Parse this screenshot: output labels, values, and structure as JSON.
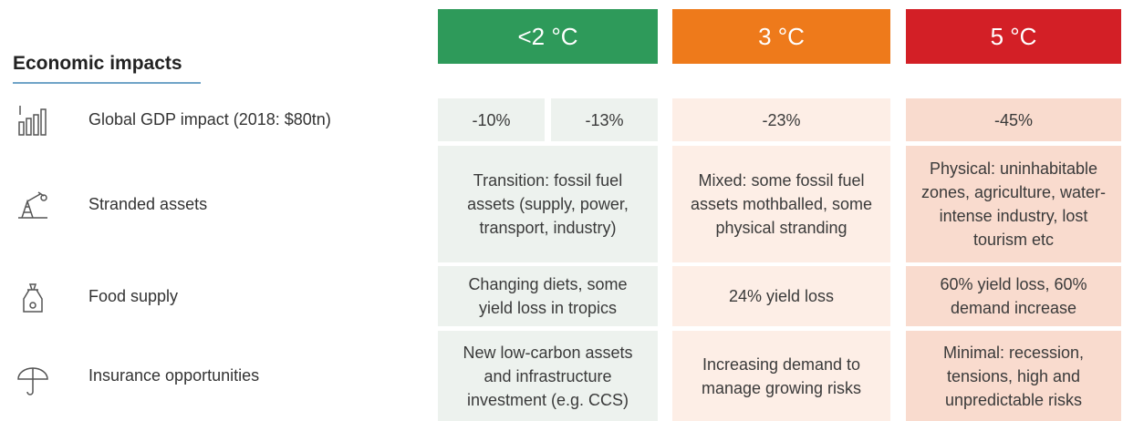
{
  "section_title": "Economic impacts",
  "columns": [
    "<2 °C",
    "3 °C",
    "5 °C"
  ],
  "rows": [
    {
      "label": "Global GDP impact (2018: $80tn)",
      "cells": [
        [
          "-10%",
          "-13%"
        ],
        [
          "-23%"
        ],
        [
          "-45%"
        ]
      ]
    },
    {
      "label": "Stranded assets",
      "cells": [
        [
          "Transition: fossil fuel assets (supply, power, transport, industry)"
        ],
        [
          "Mixed: some fossil fuel assets mothballed, some physical stranding"
        ],
        [
          "Physical: uninhabitable zones, agriculture, water-intense industry, lost tourism etc"
        ]
      ]
    },
    {
      "label": "Food supply",
      "cells": [
        [
          "Changing diets, some yield loss in tropics"
        ],
        [
          "24% yield loss"
        ],
        [
          "60% yield loss, 60% demand increase"
        ]
      ]
    },
    {
      "label": "Insurance opportunities",
      "cells": [
        [
          "New low-carbon assets and infrastructure investment (e.g. CCS)"
        ],
        [
          "Increasing demand to manage growing risks"
        ],
        [
          "Minimal: recession, tensions, high and unpredictable risks"
        ]
      ]
    }
  ]
}
